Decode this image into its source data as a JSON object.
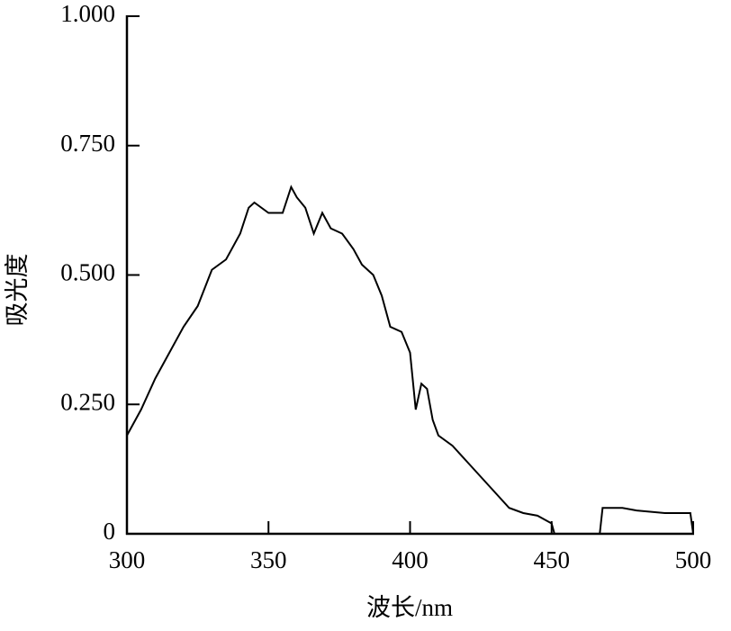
{
  "chart_data": {
    "type": "line",
    "xlabel": "波长/nm",
    "ylabel": "吸光度",
    "x": [
      300,
      305,
      310,
      315,
      320,
      325,
      330,
      335,
      340,
      343,
      345,
      350,
      355,
      358,
      360,
      363,
      366,
      369,
      372,
      376,
      380,
      383,
      387,
      390,
      393,
      397,
      400,
      402,
      404,
      406,
      408,
      410,
      415,
      420,
      425,
      430,
      435,
      440,
      445,
      450,
      451,
      458,
      467,
      468,
      475,
      480,
      490,
      499,
      500
    ],
    "series": [
      {
        "color": "#000000",
        "values": [
          0.19,
          0.24,
          0.3,
          0.35,
          0.4,
          0.44,
          0.51,
          0.53,
          0.58,
          0.63,
          0.64,
          0.62,
          0.62,
          0.67,
          0.65,
          0.63,
          0.58,
          0.62,
          0.59,
          0.58,
          0.55,
          0.52,
          0.5,
          0.46,
          0.4,
          0.39,
          0.35,
          0.24,
          0.29,
          0.28,
          0.22,
          0.19,
          0.17,
          0.14,
          0.11,
          0.08,
          0.05,
          0.04,
          0.035,
          0.02,
          0,
          null,
          0,
          0.05,
          0.05,
          0.045,
          0.04,
          0.04,
          0
        ]
      }
    ],
    "xlim": [
      300,
      500
    ],
    "xticks": [
      300,
      350,
      400,
      450,
      500
    ],
    "ylim": [
      0,
      1
    ],
    "yticks": [
      0,
      {
        "value": 0.25,
        "label": "0.250"
      },
      {
        "value": 0.5,
        "label": "0.500"
      },
      {
        "value": 0.75,
        "label": "0.750"
      },
      {
        "value": 1,
        "label": "1.000"
      }
    ],
    "grid": false
  }
}
